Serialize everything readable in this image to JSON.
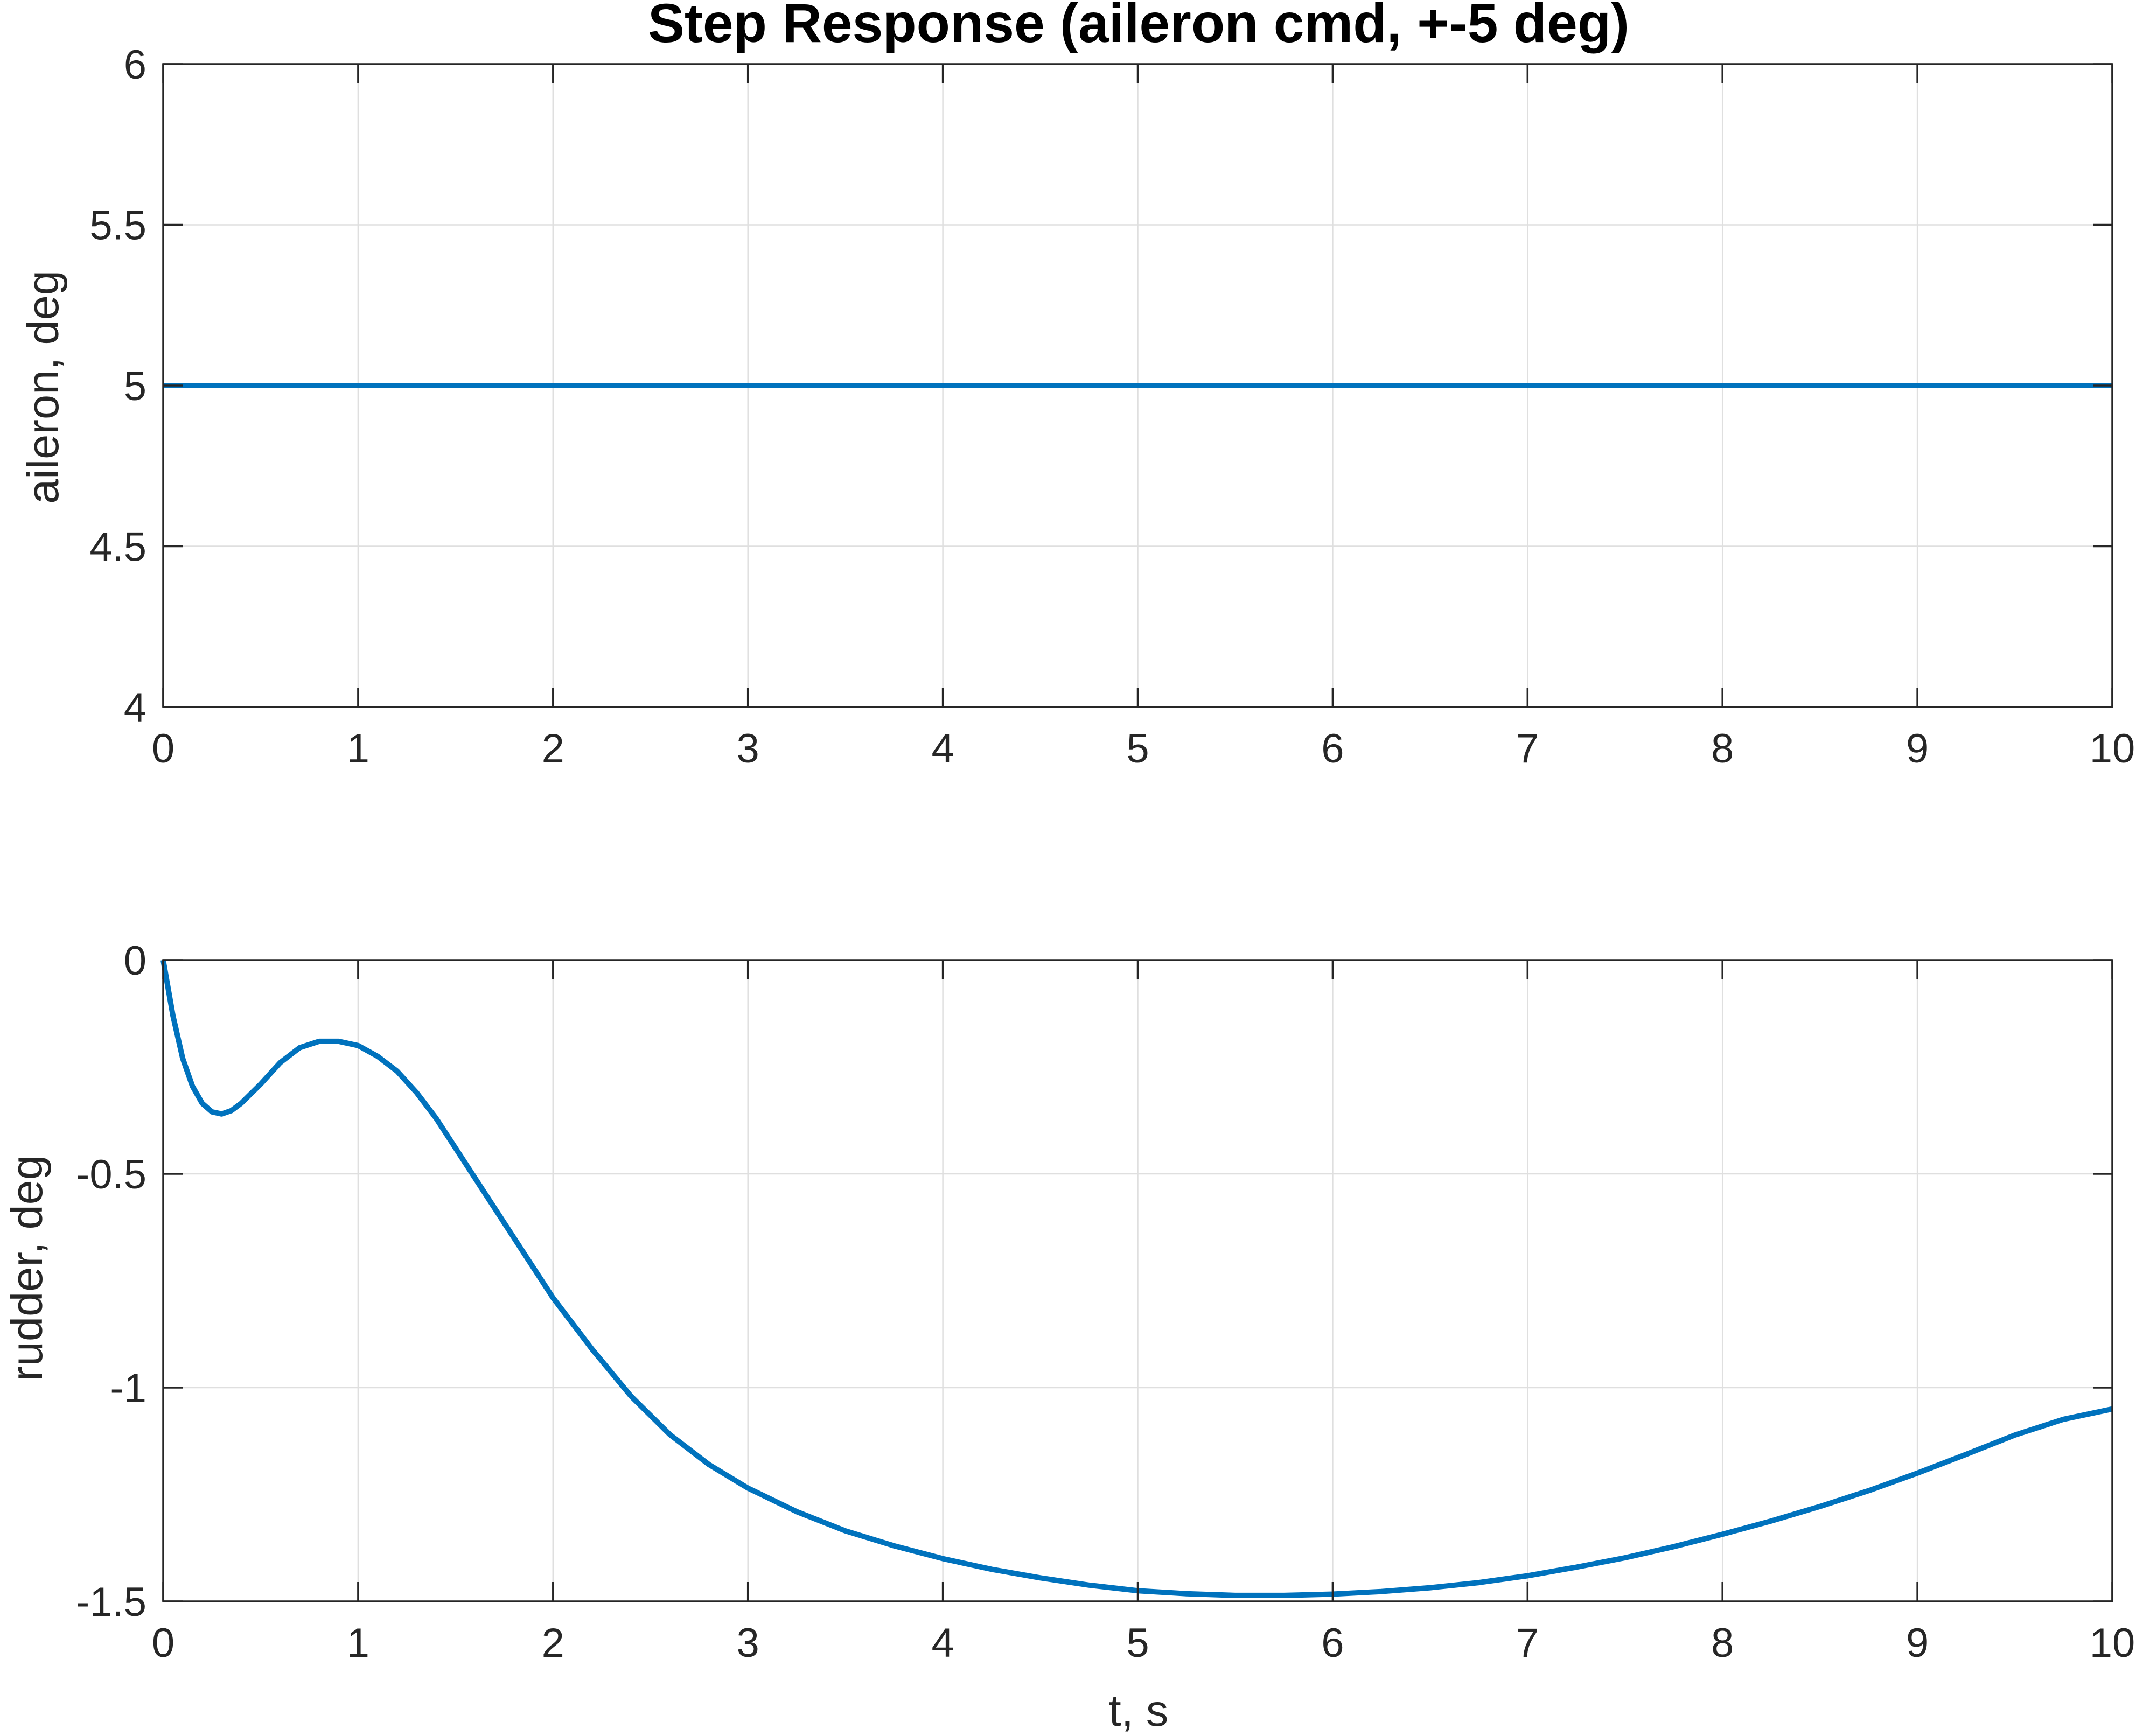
{
  "chart_data": [
    {
      "type": "line",
      "title": "Step Response (aileron cmd, +-5 deg)",
      "xlabel": "",
      "ylabel": "aileron, deg",
      "xlim": [
        0,
        10
      ],
      "ylim": [
        4,
        6
      ],
      "xticks": [
        "0",
        "1",
        "2",
        "3",
        "4",
        "5",
        "6",
        "7",
        "8",
        "9",
        "10"
      ],
      "yticks": [
        "4",
        "4.5",
        "5",
        "5.5",
        "6"
      ],
      "grid": true,
      "color": "#0072BD",
      "series": [
        {
          "x": [
            0,
            1,
            2,
            3,
            4,
            5,
            6,
            7,
            8,
            9,
            10
          ],
          "values": [
            5,
            5,
            5,
            5,
            5,
            5,
            5,
            5,
            5,
            5,
            5
          ]
        }
      ]
    },
    {
      "type": "line",
      "title": "",
      "xlabel": "t, s",
      "ylabel": "rudder, deg",
      "xlim": [
        0,
        10
      ],
      "ylim": [
        -1.5,
        0
      ],
      "xticks": [
        "0",
        "1",
        "2",
        "3",
        "4",
        "5",
        "6",
        "7",
        "8",
        "9",
        "10"
      ],
      "yticks": [
        "-1.5",
        "-1",
        "-0.5",
        "0"
      ],
      "grid": true,
      "color": "#0072BD",
      "series": [
        {
          "x": [
            0,
            0.05,
            0.1,
            0.15,
            0.2,
            0.25,
            0.3,
            0.35,
            0.4,
            0.5,
            0.6,
            0.7,
            0.8,
            0.9,
            1.0,
            1.1,
            1.2,
            1.3,
            1.4,
            1.5,
            1.6,
            1.7,
            1.8,
            1.9,
            2.0,
            2.2,
            2.4,
            2.6,
            2.8,
            3.0,
            3.25,
            3.5,
            3.75,
            4.0,
            4.25,
            4.5,
            4.75,
            5.0,
            5.25,
            5.5,
            5.75,
            6.0,
            6.25,
            6.5,
            6.75,
            7.0,
            7.25,
            7.5,
            7.75,
            8.0,
            8.25,
            8.5,
            8.75,
            9.0,
            9.25,
            9.5,
            9.75,
            10.0
          ],
          "values": [
            0,
            -0.13,
            -0.23,
            -0.295,
            -0.335,
            -0.355,
            -0.36,
            -0.352,
            -0.335,
            -0.29,
            -0.24,
            -0.205,
            -0.19,
            -0.19,
            -0.2,
            -0.225,
            -0.26,
            -0.31,
            -0.37,
            -0.44,
            -0.51,
            -0.58,
            -0.65,
            -0.72,
            -0.79,
            -0.91,
            -1.02,
            -1.11,
            -1.18,
            -1.235,
            -1.29,
            -1.335,
            -1.37,
            -1.4,
            -1.425,
            -1.445,
            -1.462,
            -1.475,
            -1.482,
            -1.486,
            -1.486,
            -1.483,
            -1.477,
            -1.468,
            -1.456,
            -1.44,
            -1.42,
            -1.398,
            -1.372,
            -1.343,
            -1.312,
            -1.278,
            -1.241,
            -1.2,
            -1.156,
            -1.111,
            -1.074,
            -1.05
          ]
        }
      ]
    }
  ]
}
